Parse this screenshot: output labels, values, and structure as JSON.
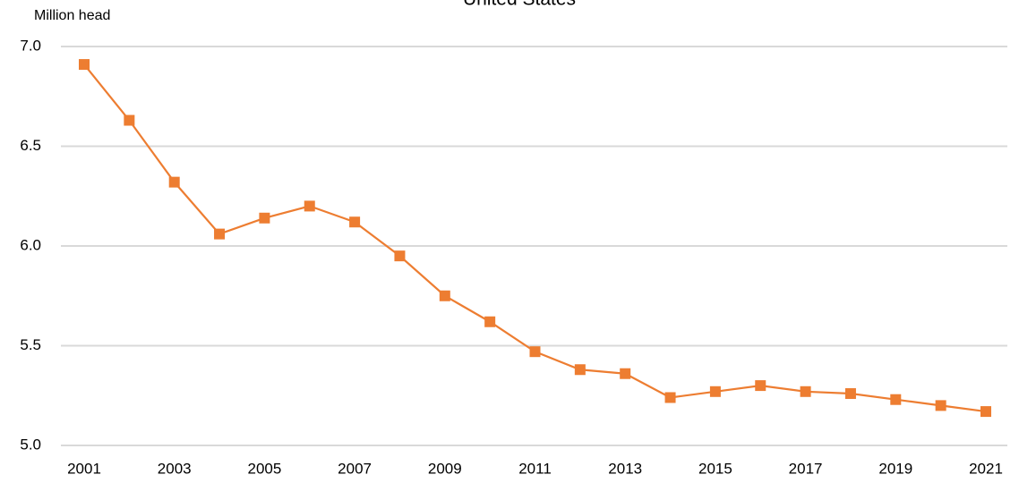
{
  "chart_data": {
    "type": "line",
    "title": "United States",
    "y_label": "Million head",
    "x": [
      2001,
      2002,
      2003,
      2004,
      2005,
      2006,
      2007,
      2008,
      2009,
      2010,
      2011,
      2012,
      2013,
      2014,
      2015,
      2016,
      2017,
      2018,
      2019,
      2020,
      2021
    ],
    "series": [
      {
        "name": "United States",
        "color": "#ED7D31",
        "values": [
          6.91,
          6.63,
          6.32,
          6.06,
          6.14,
          6.2,
          6.12,
          5.95,
          5.75,
          5.62,
          5.47,
          5.38,
          5.36,
          5.24,
          5.27,
          5.3,
          5.27,
          5.26,
          5.23,
          5.2,
          5.17
        ]
      }
    ],
    "xlim": [
      2001,
      2021
    ],
    "xticks": [
      2001,
      2003,
      2005,
      2007,
      2009,
      2011,
      2013,
      2015,
      2017,
      2019,
      2021
    ],
    "ylim": [
      5,
      7
    ],
    "yticks": [
      {
        "value": 5,
        "label": "5.0"
      },
      5.5,
      {
        "value": 6,
        "label": "6.0"
      },
      6.5,
      {
        "value": 7,
        "label": "7.0"
      }
    ],
    "grid": true
  }
}
